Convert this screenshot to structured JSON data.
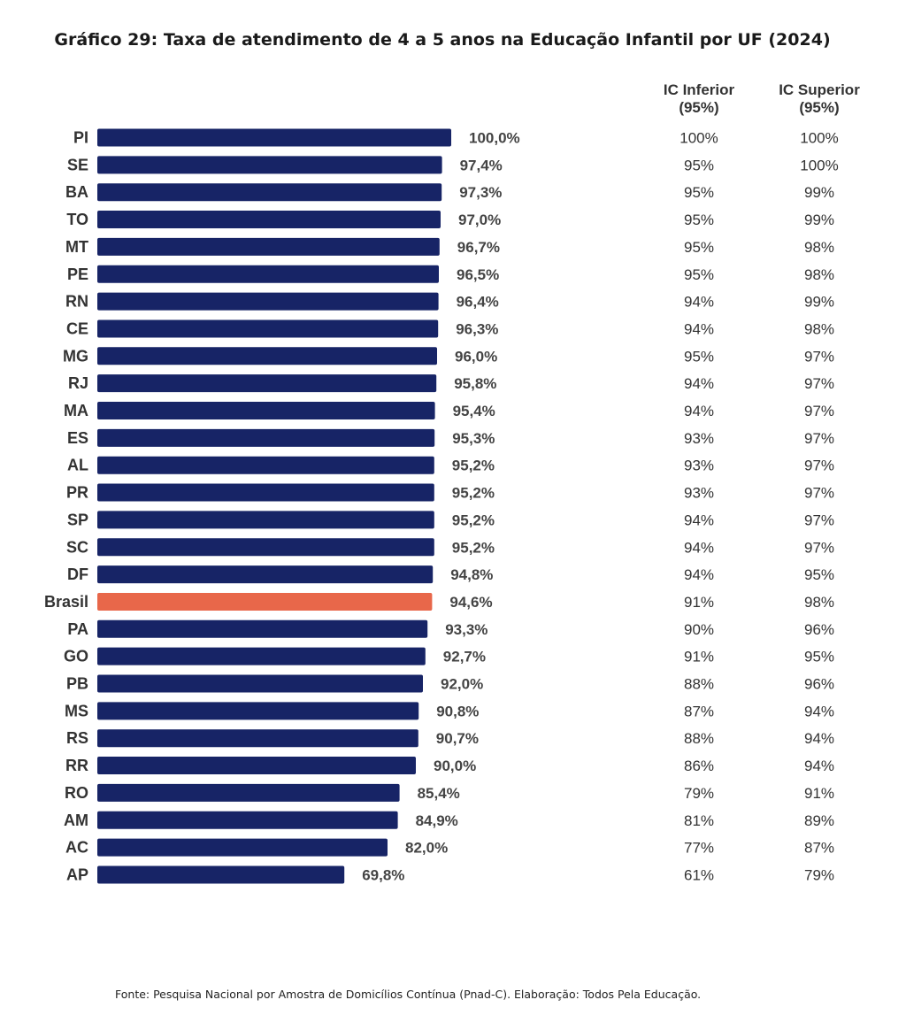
{
  "chart_data": {
    "type": "bar",
    "orientation": "horizontal",
    "title": "Gráfico 29: Taxa de atendimento de 4 a 5 anos na Educação Infantil por UF (2024)",
    "categories": [
      "PI",
      "SE",
      "BA",
      "TO",
      "MT",
      "PE",
      "RN",
      "CE",
      "MG",
      "RJ",
      "MA",
      "ES",
      "AL",
      "PR",
      "SP",
      "SC",
      "DF",
      "Brasil",
      "PA",
      "GO",
      "PB",
      "MS",
      "RS",
      "RR",
      "RO",
      "AM",
      "AC",
      "AP"
    ],
    "values": [
      100.0,
      97.4,
      97.3,
      97.0,
      96.7,
      96.5,
      96.4,
      96.3,
      96.0,
      95.8,
      95.4,
      95.3,
      95.2,
      95.2,
      95.2,
      95.2,
      94.8,
      94.6,
      93.3,
      92.7,
      92.0,
      90.8,
      90.7,
      90.0,
      85.4,
      84.9,
      82.0,
      69.8
    ],
    "value_labels": [
      "100,0%",
      "97,4%",
      "97,3%",
      "97,0%",
      "96,7%",
      "96,5%",
      "96,4%",
      "96,3%",
      "96,0%",
      "95,8%",
      "95,4%",
      "95,3%",
      "95,2%",
      "95,2%",
      "95,2%",
      "95,2%",
      "94,8%",
      "94,6%",
      "93,3%",
      "92,7%",
      "92,0%",
      "90,8%",
      "90,7%",
      "90,0%",
      "85,4%",
      "84,9%",
      "82,0%",
      "69,8%"
    ],
    "highlight_category": "Brasil",
    "colors": {
      "bar": "#172466",
      "highlight": "#e8674a"
    },
    "xlim": [
      0,
      100
    ],
    "grid": false,
    "legend": "none",
    "table": {
      "columns": [
        "IC Inferior (95%)",
        "IC Superior (95%)"
      ],
      "ic_inferior": [
        "100%",
        "95%",
        "95%",
        "95%",
        "95%",
        "95%",
        "94%",
        "94%",
        "95%",
        "94%",
        "94%",
        "93%",
        "93%",
        "93%",
        "94%",
        "94%",
        "94%",
        "91%",
        "90%",
        "91%",
        "88%",
        "87%",
        "88%",
        "86%",
        "79%",
        "81%",
        "77%",
        "61%"
      ],
      "ic_superior": [
        "100%",
        "100%",
        "99%",
        "99%",
        "98%",
        "98%",
        "99%",
        "98%",
        "97%",
        "97%",
        "97%",
        "97%",
        "97%",
        "97%",
        "97%",
        "97%",
        "95%",
        "98%",
        "96%",
        "95%",
        "96%",
        "94%",
        "94%",
        "94%",
        "91%",
        "89%",
        "87%",
        "79%"
      ]
    }
  },
  "headers": {
    "ic_inferior_line1": "IC Inferior",
    "ic_inferior_line2": "(95%)",
    "ic_superior_line1": "IC Superior",
    "ic_superior_line2": "(95%)"
  },
  "footer": "Fonte: Pesquisa Nacional por Amostra de Domicílios Contínua (Pnad-C). Elaboração: Todos Pela Educação."
}
